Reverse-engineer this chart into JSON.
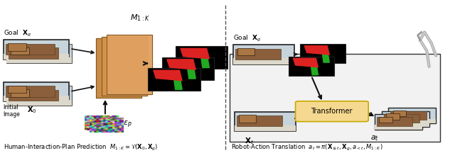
{
  "fig_width": 6.4,
  "fig_height": 2.23,
  "dpi": 100,
  "bg_color": "#ffffff",
  "left_caption": "Human-Interaction-Plan Prediction",
  "left_formula": "$M_{1:K} = \\mathcal{V}(\\mathbf{X}_0, \\mathbf{X}_g)$",
  "right_caption": "Robot-Action Translation",
  "right_formula": "$a_t = \\pi(\\mathbf{X}_{\\leq t}, \\mathbf{X}_g, a_{<t}, M_{1:K})$",
  "left_goal_label": "Goal  $\\mathbf{X}_g$",
  "right_goal_label": "Goal  $\\mathbf{X}_g$",
  "transformer_label": "Transformer",
  "at_label": "$a_t$",
  "M1K_label": "$M_{1:K}$",
  "ep_label": "$\\epsilon_p$",
  "transformer_fill": "#f5d990",
  "transformer_edge": "#c8a800",
  "box_edge": "#222222",
  "arrow_color": "#111111",
  "red_color": "#dd2222",
  "green_color": "#22aa22",
  "dashed_color": "#555555"
}
